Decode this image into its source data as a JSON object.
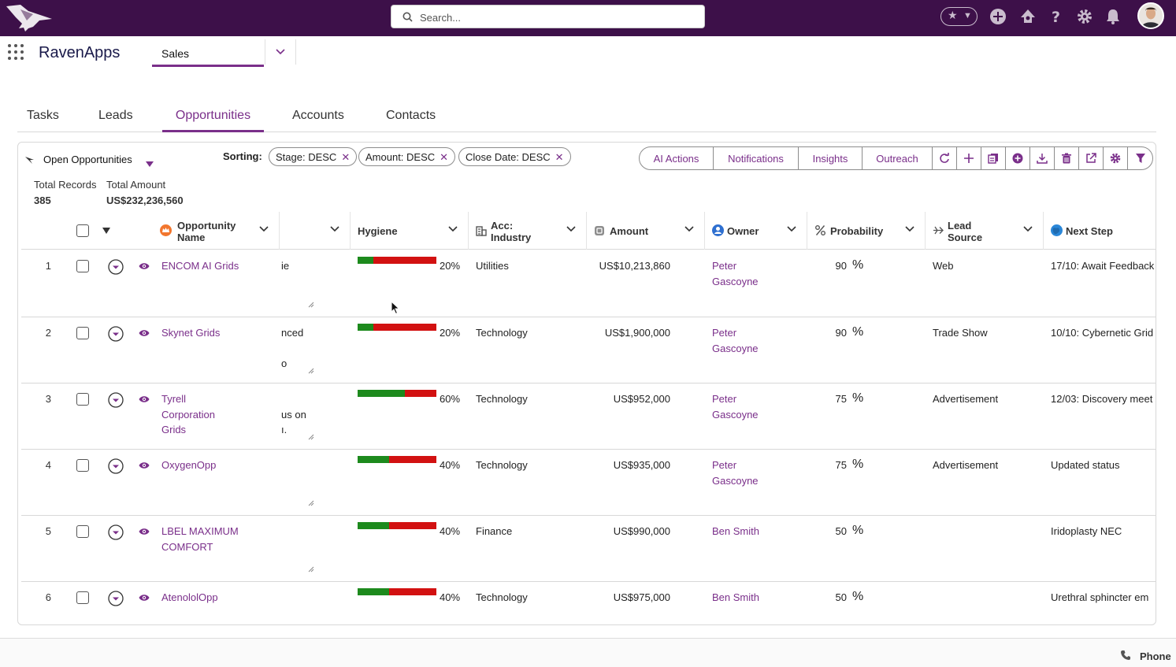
{
  "topbar": {
    "search_placeholder": "Search...",
    "icons": [
      "favorites-star-icon",
      "add-icon",
      "trailhead-icon",
      "help-icon",
      "setup-gear-icon",
      "notifications-bell-icon",
      "user-avatar"
    ]
  },
  "app": {
    "name": "RavenApps",
    "tab_label": "Sales"
  },
  "nav_tabs": [
    {
      "label": "Tasks",
      "active": false
    },
    {
      "label": "Leads",
      "active": false
    },
    {
      "label": "Opportunities",
      "active": true
    },
    {
      "label": "Accounts",
      "active": false
    },
    {
      "label": "Contacts",
      "active": false
    }
  ],
  "list": {
    "view_name": "Open Opportunities",
    "sorting_label": "Sorting:",
    "sort_chips": [
      "Stage: DESC",
      "Amount: DESC",
      "Close Date: DESC"
    ],
    "sort_chip_remove": "✕",
    "action_buttons": [
      "AI Actions",
      "Notifications",
      "Insights",
      "Outreach"
    ],
    "icon_buttons": [
      "refresh-icon",
      "add-icon",
      "clone-icon",
      "new-record-icon",
      "download-icon",
      "delete-icon",
      "open-external-icon",
      "settings-icon",
      "filter-icon"
    ],
    "stats": {
      "total_records_label": "Total Records",
      "total_records_value": "385",
      "total_amount_label": "Total Amount",
      "total_amount_value": "US$232,236,560"
    }
  },
  "table": {
    "columns": {
      "name": "Opportunity Name",
      "name_line1": "Opportunity",
      "name_line2": "Name",
      "hygiene": "Hygiene",
      "industry_line1": "Acc:",
      "industry_line2": "Industry",
      "amount": "Amount",
      "owner": "Owner",
      "probability": "Probability",
      "lead_line1": "Lead",
      "lead_line2": "Source",
      "next_step": "Next Step"
    },
    "rows": [
      {
        "n": "1",
        "name_lines": [
          "ENCOM AI Grids"
        ],
        "desc_lines": [
          "ie"
        ],
        "hygiene": 0.2,
        "hygiene_label": "20%",
        "industry": "Utilities",
        "amount": "US$10,213,860",
        "owner_lines": [
          "Peter",
          "Gascoyne"
        ],
        "probability": "90",
        "pct": "%",
        "lead_source": "Web",
        "next_step": "17/10: Await Feedback"
      },
      {
        "n": "2",
        "name_lines": [
          "Skynet Grids"
        ],
        "desc_lines": [
          "nced",
          "",
          "o"
        ],
        "hygiene": 0.2,
        "hygiene_label": "20%",
        "industry": "Technology",
        "amount": "US$1,900,000",
        "owner_lines": [
          "Peter",
          "Gascoyne"
        ],
        "probability": "90",
        "pct": "%",
        "lead_source": "Trade Show",
        "next_step": "10/10: Cybernetic Grid"
      },
      {
        "n": "3",
        "name_lines": [
          "Tyrell",
          "Corporation",
          "Grids"
        ],
        "desc_lines": [
          "",
          "us on",
          "ı."
        ],
        "hygiene": 0.6,
        "hygiene_label": "60%",
        "industry": "Technology",
        "amount": "US$952,000",
        "owner_lines": [
          "Peter",
          "Gascoyne"
        ],
        "probability": "75",
        "pct": "%",
        "lead_source": "Advertisement",
        "next_step": "12/03: Discovery meet"
      },
      {
        "n": "4",
        "name_lines": [
          "OxygenOpp"
        ],
        "desc_lines": [],
        "hygiene": 0.4,
        "hygiene_label": "40%",
        "industry": "Technology",
        "amount": "US$935,000",
        "owner_lines": [
          "Peter",
          "Gascoyne"
        ],
        "probability": "75",
        "pct": "%",
        "lead_source": "Advertisement",
        "next_step": "Updated status"
      },
      {
        "n": "5",
        "name_lines": [
          "LBEL MAXIMUM",
          "COMFORT"
        ],
        "desc_lines": [],
        "hygiene": 0.4,
        "hygiene_label": "40%",
        "industry": "Finance",
        "amount": "US$990,000",
        "owner_lines": [
          "Ben Smith"
        ],
        "probability": "50",
        "pct": "%",
        "lead_source": "",
        "next_step": "Iridoplasty NEC"
      },
      {
        "n": "6",
        "name_lines": [
          "AtenololOpp"
        ],
        "desc_lines": [],
        "hygiene": 0.4,
        "hygiene_label": "40%",
        "industry": "Technology",
        "amount": "US$975,000",
        "owner_lines": [
          "Ben Smith"
        ],
        "probability": "50",
        "pct": "%",
        "lead_source": "",
        "next_step": "Urethral sphincter em"
      }
    ]
  },
  "footer": {
    "phone_label": "Phone"
  },
  "colors": {
    "brand": "#3d1049",
    "accent": "#7a2f8a",
    "hygiene_good": "#1d8a1d",
    "hygiene_bad": "#d21111"
  }
}
